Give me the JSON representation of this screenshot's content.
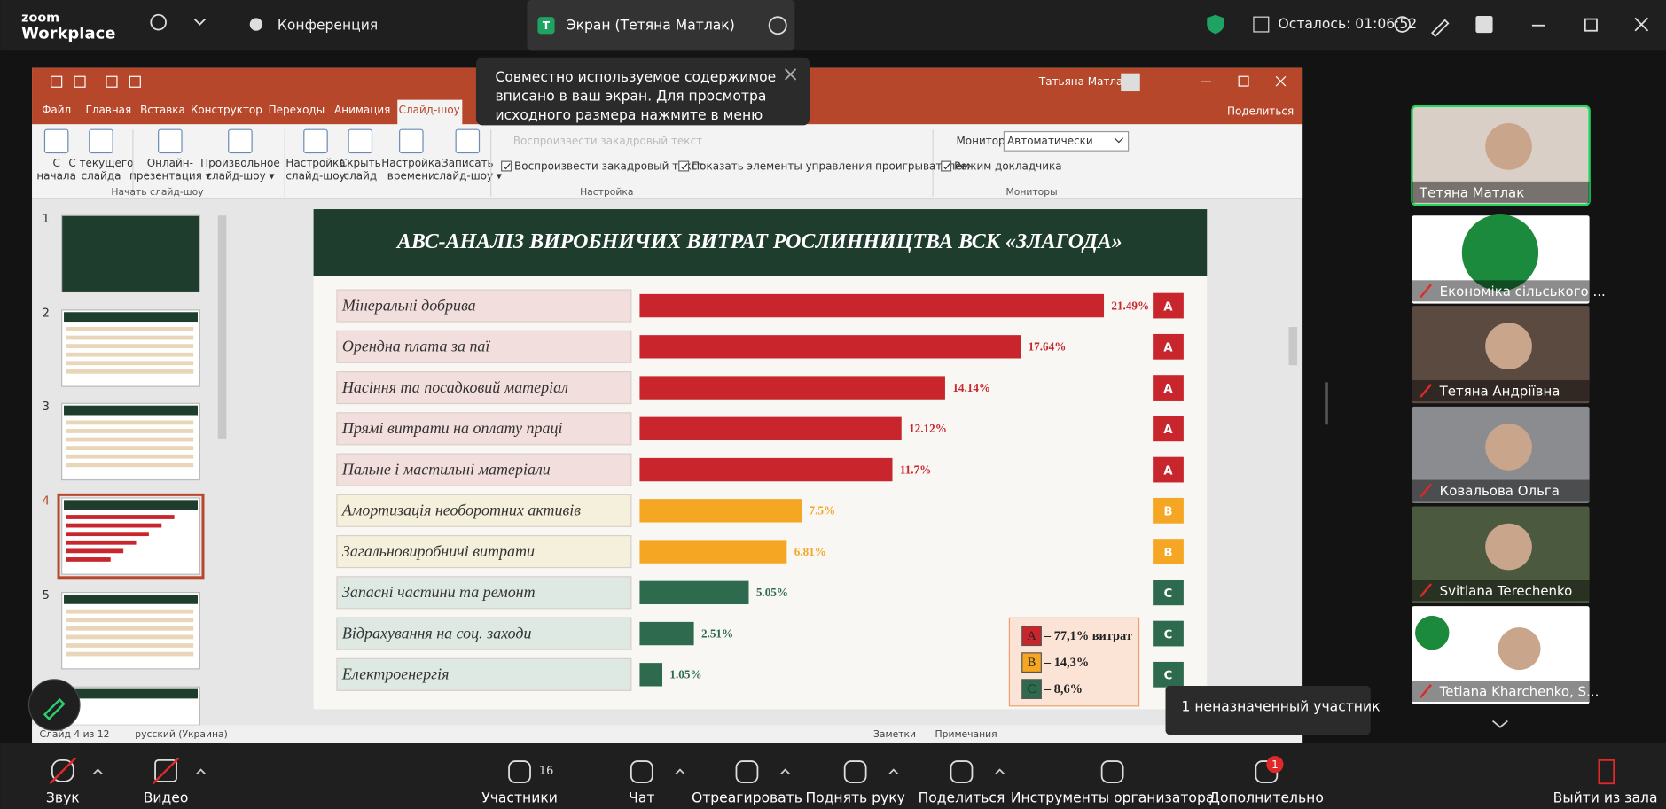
{
  "zoom_bar": {
    "logo": "zoom",
    "product": "Workplace",
    "meeting": "Конференция",
    "screen_icon": "T",
    "screen": "Экран (Тетяна Матлак)",
    "timer": "Осталось: 01:06:52"
  },
  "notice": {
    "lines": [
      "Совместно используемое содержимое",
      "вписано в ваш экран. Для просмотра",
      "исходного размера нажмите в меню"
    ]
  },
  "powerpoint": {
    "user": "Татьяна Матлак",
    "tabs": [
      "Файл",
      "Главная",
      "Вставка",
      "Конструктор",
      "Переходы",
      "Анимация",
      "Слайд-шоу"
    ],
    "share": "Поделиться",
    "buttons": [
      [
        "С",
        "начала"
      ],
      [
        "С текущего",
        "слайда"
      ],
      [
        "Онлайн-",
        "презентация ▾"
      ],
      [
        "Произвольное",
        "слайд-шоу ▾"
      ],
      [
        "Настройка",
        "слайд-шоу"
      ],
      [
        "Скрыть",
        "слайд"
      ],
      [
        "Настройка",
        "времени"
      ],
      [
        "Записать",
        "слайд-шоу ▾"
      ]
    ],
    "checkboxes": [
      "Воспроизвести закадровый текст",
      "Показать элементы управления проигрывателем",
      "Режим докладчика"
    ],
    "monitor_label": "Монитор:",
    "monitor_value": "Автоматически",
    "groups": [
      "Начать слайд-шоу",
      "Настройка",
      "Мониторы"
    ],
    "slide_numbers": [
      "1",
      "2",
      "3",
      "4",
      "5"
    ],
    "status": [
      "Слайд 4 из 12",
      "русский (Украина)",
      "Заметки",
      "Примечания"
    ]
  },
  "slide": {
    "title": "АВС-АНАЛІЗ ВИРОБНИЧИХ ВИТРАТ РОСЛИННИЦТВА ВСК «ЗЛАГОДА»",
    "chart": {
      "type": "bar",
      "categories": [
        "Мінеральні добрива",
        "Орендна плата за паї",
        "Насіння та посадковий матеріал",
        "Прямі витрати на оплату праці",
        "Пальне і мастильні матеріали",
        "Амортизація необоротних активів",
        "Загальновиробничі витрати",
        "Запасні частини та ремонт",
        "Відрахування на соц. заходи",
        "Електроенергія"
      ],
      "values": [
        21.49,
        17.64,
        14.14,
        12.12,
        11.7,
        7.5,
        6.81,
        5.05,
        2.51,
        1.05
      ],
      "value_labels": [
        "21.49%",
        "17.64%",
        "14.14%",
        "12.12%",
        "11.7%",
        "7.5%",
        "6.81%",
        "5.05%",
        "2.51%",
        "1.05%"
      ],
      "classes": [
        "A",
        "A",
        "A",
        "A",
        "A",
        "B",
        "B",
        "C",
        "C",
        "C"
      ],
      "class_colors": {
        "A": "#c8262c",
        "B": "#f5a623",
        "C": "#2e6b4e"
      },
      "legend": [
        {
          "class": "A",
          "text": "– 77,1% витрат"
        },
        {
          "class": "B",
          "text": "– 14,3%"
        },
        {
          "class": "C",
          "text": "– 8,6%"
        }
      ]
    }
  },
  "participants": {
    "names": [
      "Тетяна Матлак",
      "Економіка сільського ...",
      "Тетяна Андріївна",
      "Ковальова Ольга",
      "Svitlana Terechenko",
      "Tetiana Kharchenko, S..."
    ],
    "unassigned": "1 неназначенный участник"
  },
  "toolbar": {
    "labels": [
      "Звук",
      "Видео",
      "Участники",
      "Чат",
      "Отреагировать",
      "Поднять руку",
      "Поделиться",
      "Инструменты организатора",
      "Дополнительно",
      "Выйти из зала"
    ],
    "participants_count": "16",
    "more_badge": "1"
  }
}
